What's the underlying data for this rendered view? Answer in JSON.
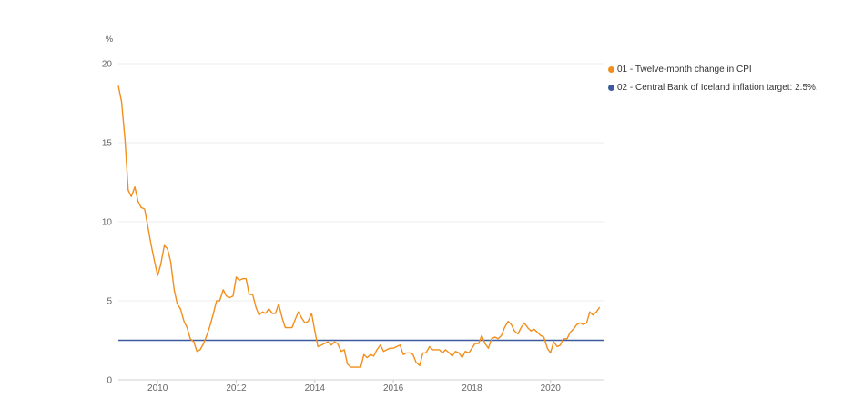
{
  "chart_data": {
    "type": "line",
    "unit_label": "%",
    "ylim": [
      0,
      20
    ],
    "y_ticks": [
      0,
      5,
      10,
      15,
      20
    ],
    "x_range": [
      2009.0,
      2021.35
    ],
    "x_ticks": [
      2010,
      2012,
      2014,
      2016,
      2018,
      2020
    ],
    "grid": true,
    "legend_position": "top-right",
    "series": [
      {
        "name": "01 - Twelve-month change in CPI",
        "color": "#f28e1c",
        "points": [
          [
            2009.0,
            18.6
          ],
          [
            2009.08,
            17.6
          ],
          [
            2009.17,
            15.2
          ],
          [
            2009.25,
            12.0
          ],
          [
            2009.33,
            11.6
          ],
          [
            2009.42,
            12.2
          ],
          [
            2009.5,
            11.3
          ],
          [
            2009.58,
            10.9
          ],
          [
            2009.67,
            10.8
          ],
          [
            2009.75,
            9.7
          ],
          [
            2009.83,
            8.6
          ],
          [
            2009.92,
            7.5
          ],
          [
            2010.0,
            6.6
          ],
          [
            2010.08,
            7.3
          ],
          [
            2010.17,
            8.5
          ],
          [
            2010.25,
            8.3
          ],
          [
            2010.33,
            7.5
          ],
          [
            2010.42,
            5.7
          ],
          [
            2010.5,
            4.8
          ],
          [
            2010.58,
            4.5
          ],
          [
            2010.67,
            3.7
          ],
          [
            2010.75,
            3.3
          ],
          [
            2010.83,
            2.6
          ],
          [
            2010.92,
            2.4
          ],
          [
            2011.0,
            1.8
          ],
          [
            2011.08,
            1.9
          ],
          [
            2011.17,
            2.3
          ],
          [
            2011.25,
            2.8
          ],
          [
            2011.33,
            3.4
          ],
          [
            2011.42,
            4.2
          ],
          [
            2011.5,
            5.0
          ],
          [
            2011.58,
            5.0
          ],
          [
            2011.67,
            5.7
          ],
          [
            2011.75,
            5.3
          ],
          [
            2011.83,
            5.2
          ],
          [
            2011.92,
            5.3
          ],
          [
            2012.0,
            6.5
          ],
          [
            2012.08,
            6.3
          ],
          [
            2012.17,
            6.4
          ],
          [
            2012.25,
            6.4
          ],
          [
            2012.33,
            5.4
          ],
          [
            2012.42,
            5.4
          ],
          [
            2012.5,
            4.6
          ],
          [
            2012.58,
            4.1
          ],
          [
            2012.67,
            4.3
          ],
          [
            2012.75,
            4.2
          ],
          [
            2012.83,
            4.5
          ],
          [
            2012.92,
            4.2
          ],
          [
            2013.0,
            4.2
          ],
          [
            2013.08,
            4.8
          ],
          [
            2013.17,
            3.9
          ],
          [
            2013.25,
            3.3
          ],
          [
            2013.33,
            3.3
          ],
          [
            2013.42,
            3.3
          ],
          [
            2013.5,
            3.8
          ],
          [
            2013.58,
            4.3
          ],
          [
            2013.67,
            3.9
          ],
          [
            2013.75,
            3.6
          ],
          [
            2013.83,
            3.7
          ],
          [
            2013.92,
            4.2
          ],
          [
            2014.0,
            3.1
          ],
          [
            2014.08,
            2.1
          ],
          [
            2014.17,
            2.2
          ],
          [
            2014.25,
            2.3
          ],
          [
            2014.33,
            2.4
          ],
          [
            2014.42,
            2.2
          ],
          [
            2014.5,
            2.4
          ],
          [
            2014.58,
            2.3
          ],
          [
            2014.67,
            1.8
          ],
          [
            2014.75,
            1.9
          ],
          [
            2014.83,
            1.0
          ],
          [
            2014.92,
            0.8
          ],
          [
            2015.0,
            0.8
          ],
          [
            2015.08,
            0.8
          ],
          [
            2015.17,
            0.8
          ],
          [
            2015.25,
            1.6
          ],
          [
            2015.33,
            1.4
          ],
          [
            2015.42,
            1.6
          ],
          [
            2015.5,
            1.5
          ],
          [
            2015.58,
            1.9
          ],
          [
            2015.67,
            2.2
          ],
          [
            2015.75,
            1.8
          ],
          [
            2015.83,
            1.9
          ],
          [
            2015.92,
            2.0
          ],
          [
            2016.0,
            2.0
          ],
          [
            2016.08,
            2.1
          ],
          [
            2016.17,
            2.2
          ],
          [
            2016.25,
            1.6
          ],
          [
            2016.33,
            1.7
          ],
          [
            2016.42,
            1.7
          ],
          [
            2016.5,
            1.6
          ],
          [
            2016.58,
            1.1
          ],
          [
            2016.67,
            0.9
          ],
          [
            2016.75,
            1.7
          ],
          [
            2016.83,
            1.7
          ],
          [
            2016.92,
            2.1
          ],
          [
            2017.0,
            1.9
          ],
          [
            2017.08,
            1.9
          ],
          [
            2017.17,
            1.9
          ],
          [
            2017.25,
            1.7
          ],
          [
            2017.33,
            1.9
          ],
          [
            2017.42,
            1.7
          ],
          [
            2017.5,
            1.5
          ],
          [
            2017.58,
            1.8
          ],
          [
            2017.67,
            1.7
          ],
          [
            2017.75,
            1.4
          ],
          [
            2017.83,
            1.8
          ],
          [
            2017.92,
            1.7
          ],
          [
            2018.0,
            2.0
          ],
          [
            2018.08,
            2.3
          ],
          [
            2018.17,
            2.3
          ],
          [
            2018.25,
            2.8
          ],
          [
            2018.33,
            2.3
          ],
          [
            2018.42,
            2.0
          ],
          [
            2018.5,
            2.6
          ],
          [
            2018.58,
            2.7
          ],
          [
            2018.67,
            2.6
          ],
          [
            2018.75,
            2.8
          ],
          [
            2018.83,
            3.3
          ],
          [
            2018.92,
            3.7
          ],
          [
            2019.0,
            3.5
          ],
          [
            2019.08,
            3.1
          ],
          [
            2019.17,
            2.9
          ],
          [
            2019.25,
            3.3
          ],
          [
            2019.33,
            3.6
          ],
          [
            2019.42,
            3.3
          ],
          [
            2019.5,
            3.1
          ],
          [
            2019.58,
            3.2
          ],
          [
            2019.67,
            3.0
          ],
          [
            2019.75,
            2.8
          ],
          [
            2019.83,
            2.7
          ],
          [
            2019.92,
            2.0
          ],
          [
            2020.0,
            1.7
          ],
          [
            2020.08,
            2.4
          ],
          [
            2020.17,
            2.1
          ],
          [
            2020.25,
            2.2
          ],
          [
            2020.33,
            2.6
          ],
          [
            2020.42,
            2.6
          ],
          [
            2020.5,
            3.0
          ],
          [
            2020.58,
            3.2
          ],
          [
            2020.67,
            3.5
          ],
          [
            2020.75,
            3.6
          ],
          [
            2020.83,
            3.5
          ],
          [
            2020.92,
            3.6
          ],
          [
            2021.0,
            4.3
          ],
          [
            2021.08,
            4.1
          ],
          [
            2021.17,
            4.3
          ],
          [
            2021.25,
            4.6
          ]
        ]
      },
      {
        "name": "02 - Central Bank of Iceland inflation target: 2.5%.",
        "color": "#3d5a9e",
        "points": [
          [
            2009.0,
            2.5
          ],
          [
            2021.35,
            2.5
          ]
        ]
      }
    ]
  }
}
